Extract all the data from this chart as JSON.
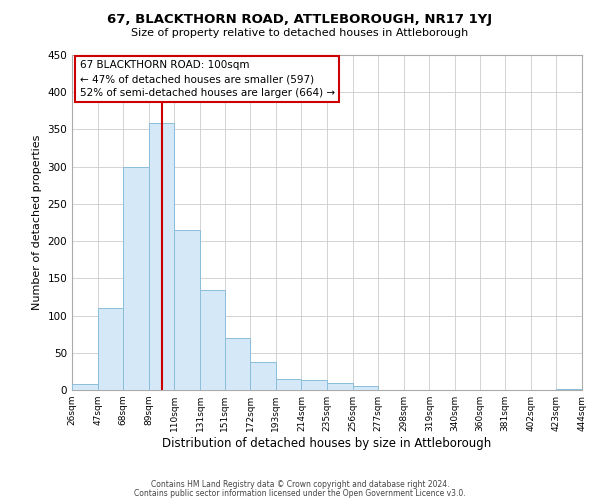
{
  "title": "67, BLACKTHORN ROAD, ATTLEBOROUGH, NR17 1YJ",
  "subtitle": "Size of property relative to detached houses in Attleborough",
  "xlabel": "Distribution of detached houses by size in Attleborough",
  "ylabel": "Number of detached properties",
  "footer_line1": "Contains HM Land Registry data © Crown copyright and database right 2024.",
  "footer_line2": "Contains public sector information licensed under the Open Government Licence v3.0.",
  "bar_edges": [
    26,
    47,
    68,
    89,
    110,
    131,
    151,
    172,
    193,
    214,
    235,
    256,
    277,
    298,
    319,
    340,
    360,
    381,
    402,
    423,
    444
  ],
  "bar_heights": [
    8,
    110,
    300,
    358,
    215,
    135,
    70,
    38,
    15,
    13,
    10,
    5,
    0,
    0,
    0,
    0,
    0,
    0,
    0,
    2
  ],
  "bar_color": "#d4e8f7",
  "bar_edgecolor": "#8bbdd9",
  "reference_line_x": 100,
  "reference_line_color": "#cc0000",
  "ylim": [
    0,
    450
  ],
  "yticks": [
    0,
    50,
    100,
    150,
    200,
    250,
    300,
    350,
    400,
    450
  ],
  "xtick_labels": [
    "26sqm",
    "47sqm",
    "68sqm",
    "89sqm",
    "110sqm",
    "131sqm",
    "151sqm",
    "172sqm",
    "193sqm",
    "214sqm",
    "235sqm",
    "256sqm",
    "277sqm",
    "298sqm",
    "319sqm",
    "340sqm",
    "360sqm",
    "381sqm",
    "402sqm",
    "423sqm",
    "444sqm"
  ],
  "annotation_title": "67 BLACKTHORN ROAD: 100sqm",
  "annotation_line2": "← 47% of detached houses are smaller (597)",
  "annotation_line3": "52% of semi-detached houses are larger (664) →",
  "bg_color": "#ffffff",
  "grid_color": "#cccccc",
  "ann_box_edgecolor": "#cc0000"
}
